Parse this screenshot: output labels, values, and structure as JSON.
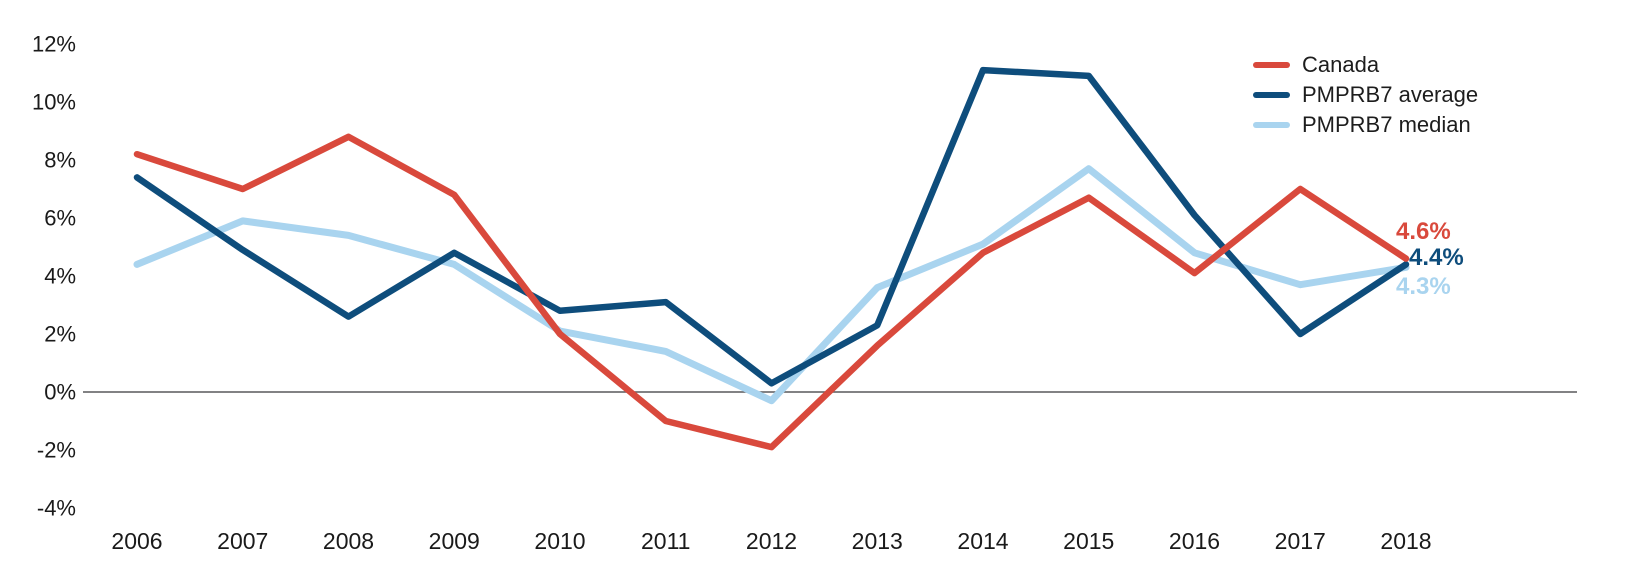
{
  "chart_data": {
    "type": "line",
    "title": "",
    "xlabel": "",
    "ylabel": "",
    "x": [
      "2006",
      "2007",
      "2008",
      "2009",
      "2010",
      "2011",
      "2012",
      "2013",
      "2014",
      "2015",
      "2016",
      "2017",
      "2018"
    ],
    "series": [
      {
        "name": "Canada",
        "color": "#D9493C",
        "end_label": "4.6%",
        "values": [
          8.2,
          7.0,
          8.8,
          6.8,
          2.0,
          -1.0,
          -1.9,
          1.6,
          4.8,
          6.7,
          4.1,
          7.0,
          4.6
        ]
      },
      {
        "name": "PMPRB7 average",
        "color": "#0E4D7C",
        "end_label": "4.4%",
        "values": [
          7.4,
          4.9,
          2.6,
          4.8,
          2.8,
          3.1,
          0.3,
          2.3,
          11.1,
          10.9,
          6.1,
          2.0,
          4.4
        ]
      },
      {
        "name": "PMPRB7 median",
        "color": "#A9D4EF",
        "end_label": "4.3%",
        "values": [
          4.4,
          5.9,
          5.4,
          4.4,
          2.1,
          1.4,
          -0.3,
          3.6,
          5.1,
          7.7,
          4.8,
          3.7,
          4.3
        ]
      }
    ],
    "yticks": [
      {
        "label": "12%",
        "value": 12
      },
      {
        "label": "10%",
        "value": 10
      },
      {
        "label": "8%",
        "value": 8
      },
      {
        "label": "6%",
        "value": 6
      },
      {
        "label": "4%",
        "value": 4
      },
      {
        "label": "2%",
        "value": 2
      },
      {
        "label": "0%",
        "value": 0
      },
      {
        "label": "-2%",
        "value": -2
      },
      {
        "label": "-4%",
        "value": -4
      }
    ],
    "ylim": [
      -4,
      12
    ],
    "grid": "zero-baseline-only",
    "legend_position": "top-right",
    "baseline_color": "#58585B"
  }
}
